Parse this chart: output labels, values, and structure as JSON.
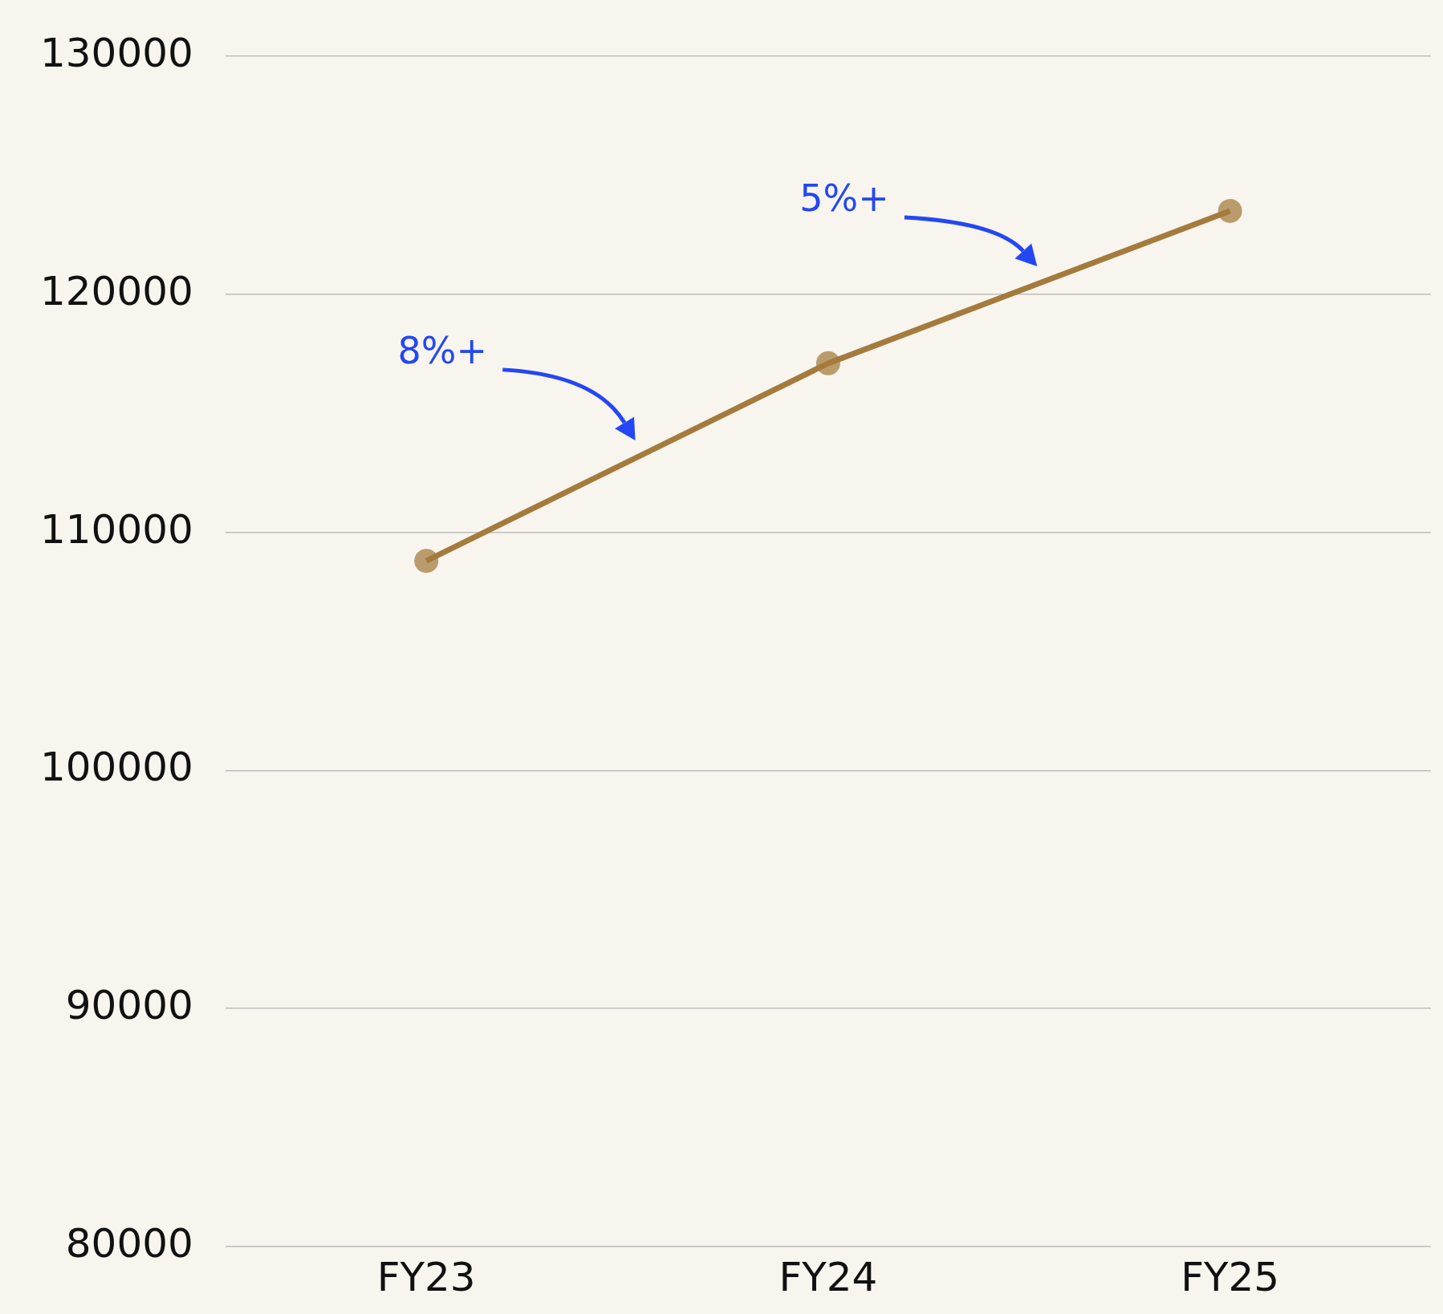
{
  "chart_data": {
    "type": "line",
    "categories": [
      "FY23",
      "FY24",
      "FY25"
    ],
    "series": [
      {
        "color": "#a47b3c",
        "values": [
          108800,
          117100,
          123500
        ]
      }
    ],
    "ylim": [
      80000,
      130000
    ],
    "yticks": [
      80000,
      90000,
      100000,
      110000,
      120000,
      130000
    ],
    "grid": "y",
    "legend": false,
    "marker": "circle",
    "line_style": "solid",
    "annotations": [
      "8%+",
      "5%+"
    ]
  }
}
